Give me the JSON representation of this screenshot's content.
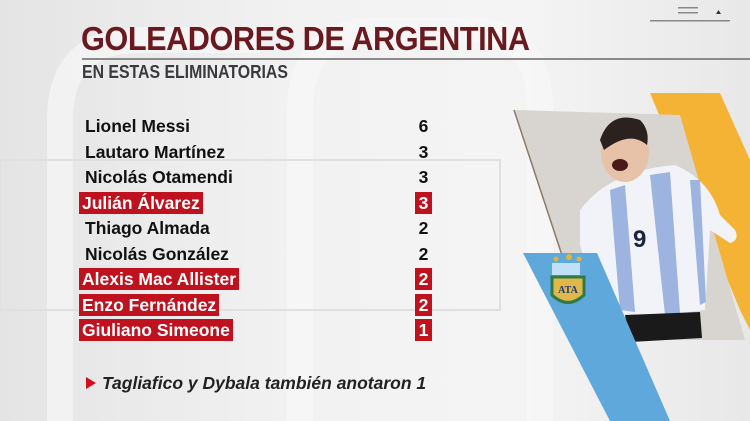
{
  "header": {
    "title": "GOLEADORES DE ARGENTINA",
    "subtitle": "EN ESTAS ELIMINATORIAS"
  },
  "scorers": [
    {
      "name": "Lionel Messi",
      "goals": "6",
      "highlighted": false
    },
    {
      "name": "Lautaro Martínez",
      "goals": "3",
      "highlighted": false
    },
    {
      "name": "Nicolás Otamendi",
      "goals": "3",
      "highlighted": false
    },
    {
      "name": "Julián Álvarez",
      "goals": "3",
      "highlighted": true
    },
    {
      "name": "Thiago Almada",
      "goals": "2",
      "highlighted": false
    },
    {
      "name": "Nicolás González",
      "goals": "2",
      "highlighted": false
    },
    {
      "name": "Alexis Mac Allister",
      "goals": "2",
      "highlighted": true
    },
    {
      "name": "Enzo Fernández",
      "goals": "2",
      "highlighted": true
    },
    {
      "name": "Giuliano Simeone",
      "goals": "1",
      "highlighted": true
    }
  ],
  "footer": {
    "icon": "triangle-right-icon",
    "text": "Tagliafico y Dybala también anotaron 1"
  },
  "photo": {
    "jersey_number": "9",
    "crest": "ATA"
  },
  "colors": {
    "title": "#6a1a1f",
    "highlight": "#c0121e",
    "accent_yellow": "#f5b335",
    "accent_blue": "#5fa8dc"
  }
}
